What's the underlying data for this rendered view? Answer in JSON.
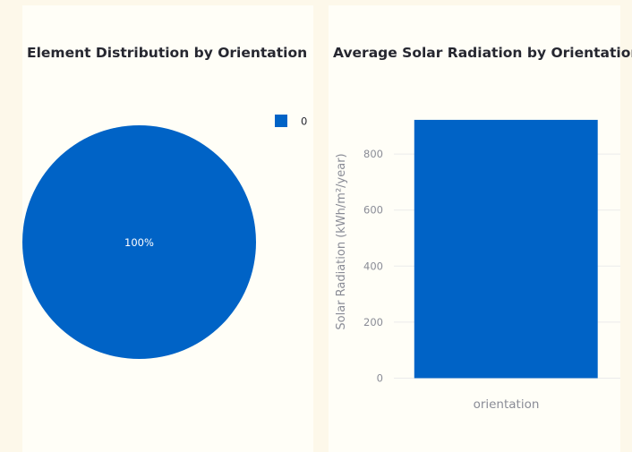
{
  "chart_data": [
    {
      "type": "pie",
      "title": "Element Distribution by Orientation",
      "labels": [
        "0"
      ],
      "values": [
        1
      ],
      "data_labels": [
        "100%"
      ],
      "colors": [
        "#0063c6"
      ],
      "legend": {
        "entries": [
          "0"
        ],
        "placement": "top-right"
      }
    },
    {
      "type": "bar",
      "title": "Average Solar Radiation by Orientation",
      "categories": [
        "orientation"
      ],
      "values": [
        922
      ],
      "xlabel": "orientation",
      "ylabel": "Solar Radiation (kWh/m²/year)",
      "ylim": [
        0,
        970
      ],
      "yticks": [
        0,
        200,
        400,
        600,
        800
      ],
      "grid": true,
      "colors": [
        "#0063c6"
      ]
    }
  ],
  "colors": {
    "page_bg": "#fdf8ea",
    "panel_bg": "#fffef7",
    "title": "#262730",
    "axis_text": "#8a8c96",
    "grid": "#ebebeb"
  }
}
